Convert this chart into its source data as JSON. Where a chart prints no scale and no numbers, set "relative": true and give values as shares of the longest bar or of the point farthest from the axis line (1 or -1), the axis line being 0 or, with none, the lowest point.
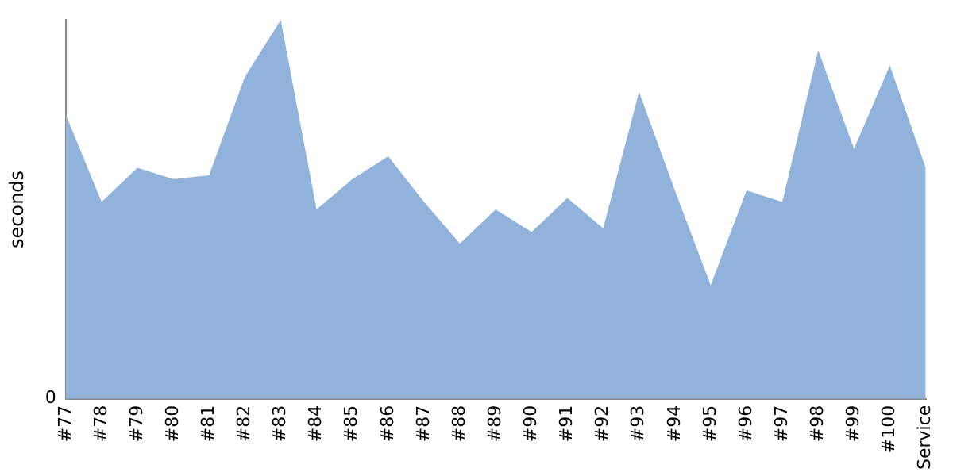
{
  "chart_data": {
    "type": "area",
    "ylabel": "seconds",
    "relative": true,
    "grid": false,
    "legend": false,
    "annotations": [
      "0"
    ],
    "categories": [
      "#77",
      "#78",
      "#79",
      "#80",
      "#81",
      "#82",
      "#83",
      "#84",
      "#85",
      "#86",
      "#87",
      "#88",
      "#89",
      "#90",
      "#91",
      "#92",
      "#93",
      "#94",
      "#95",
      "#96",
      "#97",
      "#98",
      "#99",
      "#100",
      "Service"
    ],
    "series": [
      {
        "color": "#91b3db",
        "values": [
          0.75,
          0.52,
          0.61,
          0.58,
          0.59,
          0.85,
          1,
          0.5,
          0.58,
          0.64,
          0.52,
          0.41,
          0.5,
          0.44,
          0.53,
          0.45,
          0.81,
          0.55,
          0.3,
          0.55,
          0.52,
          0.92,
          0.66,
          0.88,
          0.61
        ]
      }
    ]
  }
}
